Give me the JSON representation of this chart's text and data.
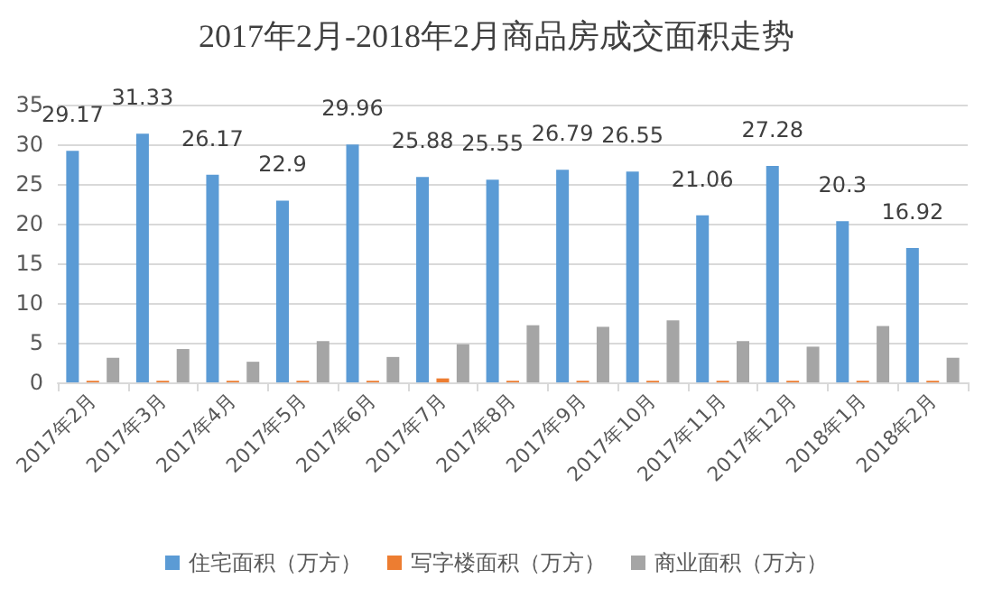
{
  "chart_data": {
    "type": "bar",
    "title": "2017年2月-2018年2月商品房成交面积走势",
    "categories": [
      "2017年2月",
      "2017年3月",
      "2017年4月",
      "2017年5月",
      "2017年6月",
      "2017年7月",
      "2017年8月",
      "2017年9月",
      "2017年10月",
      "2017年11月",
      "2017年12月",
      "2018年1月",
      "2018年2月"
    ],
    "series": [
      {
        "name": "住宅面积（万方）",
        "color": "#5b9bd5",
        "values": [
          29.17,
          31.33,
          26.17,
          22.9,
          29.96,
          25.88,
          25.55,
          26.79,
          26.55,
          21.06,
          27.28,
          20.3,
          16.92
        ],
        "value_labels": [
          "29.17",
          "31.33",
          "26.17",
          "22.9",
          "29.96",
          "25.88",
          "25.55",
          "26.79",
          "26.55",
          "21.06",
          "27.28",
          "20.3",
          "16.92"
        ]
      },
      {
        "name": "写字楼面积（万方）",
        "color": "#ed7d31",
        "values": [
          0.2,
          0.2,
          0.2,
          0.2,
          0.2,
          0.5,
          0.2,
          0.2,
          0.2,
          0.2,
          0.2,
          0.2,
          0.2
        ]
      },
      {
        "name": "商业面积（万方）",
        "color": "#a5a5a5",
        "values": [
          3.1,
          4.2,
          2.6,
          5.2,
          3.2,
          4.8,
          7.2,
          7.0,
          7.8,
          5.2,
          4.5,
          7.1,
          3.1
        ]
      }
    ],
    "ylim": [
      0,
      35
    ],
    "yticks": [
      0,
      5,
      10,
      15,
      20,
      25,
      30,
      35
    ],
    "grid": "y",
    "legend": "bottom"
  }
}
